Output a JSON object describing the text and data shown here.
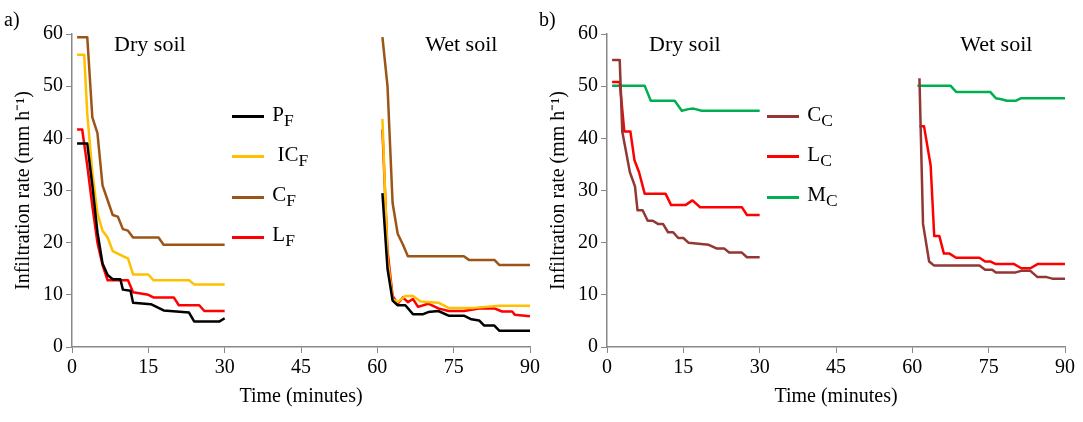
{
  "chart_data": [
    {
      "type": "line",
      "title": "a)",
      "xlabel": "Time (minutes)",
      "ylabel": "Infiltration rate (mm h⁻¹)",
      "xlim": [
        0,
        90
      ],
      "xticks": [
        0,
        15,
        30,
        45,
        60,
        75,
        90
      ],
      "ylim": [
        0,
        60
      ],
      "yticks": [
        0,
        10,
        20,
        30,
        40,
        50,
        60
      ],
      "grid": false,
      "legend": "center",
      "marker": "none",
      "line_style": "solid",
      "annotations": [
        "Dry soil",
        "Wet soil"
      ],
      "series": [
        {
          "name": "P$_{F}$",
          "color": "#000000",
          "x": [
            1,
            3,
            4,
            5,
            6,
            7,
            8,
            9.5,
            10,
            11.5,
            12,
            15.5,
            18,
            23,
            24,
            29,
            30,
            45,
            61,
            62,
            63,
            64,
            65.5,
            67,
            69,
            70,
            72,
            74,
            77,
            78.5,
            80,
            81,
            83,
            84,
            90
          ],
          "values": [
            39,
            39,
            31,
            22,
            16,
            13.8,
            13,
            13,
            11,
            10.8,
            8.5,
            8.2,
            7,
            6.6,
            4.9,
            4.9,
            5.5,
            null,
            29.5,
            15,
            8.9,
            8,
            8,
            6.3,
            6.3,
            6.7,
            6.9,
            6,
            6,
            5.3,
            5.1,
            4.1,
            4.1,
            3.1,
            3.1
          ]
        },
        {
          "name": " IC$_{F}$",
          "color": "#ffc000",
          "x": [
            1,
            2.4,
            3,
            4,
            5,
            6,
            7,
            8,
            10,
            11,
            12,
            15,
            16,
            23,
            24,
            30,
            45,
            61,
            62,
            63,
            64,
            65.5,
            67,
            68.5,
            72,
            74,
            79,
            84,
            90
          ],
          "values": [
            56,
            56,
            44.7,
            33.5,
            25.6,
            22.3,
            21,
            18.4,
            17.4,
            17,
            13.9,
            13.9,
            12.8,
            12.8,
            12,
            12,
            null,
            43.7,
            17,
            9.2,
            8.6,
            9.8,
            9.8,
            8.7,
            8.5,
            7.5,
            7.5,
            7.9,
            7.9
          ]
        },
        {
          "name": "C$_{F}$",
          "color": "#9c5516",
          "x": [
            1,
            3,
            4,
            5,
            6,
            8,
            9,
            10,
            11,
            12,
            17,
            18,
            30,
            45,
            61,
            62,
            63,
            64,
            65,
            66,
            77,
            78,
            83,
            84,
            90
          ],
          "values": [
            59.4,
            59.4,
            44,
            41,
            31,
            25.3,
            25,
            22.6,
            22.3,
            21,
            21,
            19.6,
            19.6,
            null,
            59.4,
            50,
            27.6,
            21.7,
            19.7,
            17.4,
            17.4,
            16.7,
            16.7,
            15.7,
            15.7
          ]
        },
        {
          "name": "L$_{F}$",
          "color": "#ff0000",
          "x": [
            1,
            2,
            3,
            4,
            5,
            6,
            7,
            11,
            12,
            15,
            16,
            20,
            21,
            25,
            26,
            30,
            45,
            61,
            62,
            63,
            64,
            65,
            66,
            67,
            68,
            70,
            72,
            74,
            77,
            80,
            83,
            84.5,
            86.5,
            87,
            90
          ],
          "values": [
            41.7,
            41.7,
            34.8,
            27,
            20,
            15.7,
            12.8,
            12.8,
            10.5,
            10,
            9.5,
            9.5,
            8,
            8,
            6.9,
            6.9,
            null,
            41.7,
            18.4,
            9.8,
            8.3,
            9.5,
            8.6,
            9.2,
            7.7,
            8.3,
            7.4,
            6.9,
            6.9,
            7.4,
            7.4,
            6.8,
            6.8,
            6.2,
            5.9
          ]
        }
      ]
    },
    {
      "type": "line",
      "title": "b)",
      "xlabel": "Time (minutes)",
      "ylabel": "Infiltration rate (mm h⁻¹)",
      "xlim": [
        0,
        90
      ],
      "xticks": [
        0,
        15,
        30,
        45,
        60,
        75,
        90
      ],
      "ylim": [
        0,
        60
      ],
      "yticks": [
        0,
        10,
        20,
        30,
        40,
        50,
        60
      ],
      "grid": false,
      "legend": "center",
      "marker": "none",
      "line_style": "solid",
      "annotations": [
        "Dry soil",
        "Wet soil"
      ],
      "series": [
        {
          "name": "C$_{C}$",
          "color": "#943634",
          "x": [
            1,
            2.5,
            3,
            4.5,
            5.5,
            6,
            7,
            8,
            9,
            10,
            11,
            12,
            13,
            14,
            15,
            16,
            20,
            21.5,
            23,
            24,
            26.5,
            27.5,
            30,
            45,
            61.4,
            62.1,
            63.3,
            64.3,
            73.2,
            74.3,
            75.7,
            76.4,
            80.3,
            81.4,
            83.2,
            84.6,
            86.4,
            87.5,
            90
          ],
          "values": [
            55,
            55,
            41.3,
            33.5,
            30.8,
            26.2,
            26.2,
            24.2,
            24.2,
            23.6,
            23.6,
            22,
            22,
            20.9,
            20.9,
            20,
            19.6,
            18.9,
            18.9,
            18.1,
            18.1,
            17.2,
            17.2,
            null,
            51.5,
            23.6,
            16.4,
            15.6,
            15.6,
            14.8,
            14.8,
            14.3,
            14.3,
            14.6,
            14.6,
            13.4,
            13.4,
            13.1,
            13.1
          ]
        },
        {
          "name": "L$_{C}$",
          "color": "#ff0000",
          "x": [
            1,
            2.5,
            3.4,
            4.6,
            5.4,
            6.3,
            7.4,
            11.5,
            12.6,
            15.4,
            16.8,
            18.3,
            26.5,
            27.5,
            30,
            45,
            61.4,
            62.3,
            63.6,
            64.3,
            65.3,
            66.2,
            67.3,
            68.6,
            73.2,
            74.3,
            75.3,
            76.4,
            80,
            81.4,
            83.2,
            84.6,
            90
          ],
          "values": [
            50.8,
            50.8,
            41.3,
            41.3,
            35.8,
            33.5,
            29.4,
            29.4,
            27.2,
            27.2,
            28.1,
            26.8,
            26.8,
            25.3,
            25.3,
            null,
            42.3,
            42.3,
            34.8,
            21.3,
            21.3,
            17.9,
            17.9,
            17.1,
            17.1,
            16.4,
            16.4,
            15.9,
            15.9,
            15.1,
            15.1,
            15.9,
            15.9
          ]
        },
        {
          "name": "M$_{C}$",
          "color": "#00b050",
          "x": [
            1,
            7.4,
            8.6,
            13.3,
            14.7,
            16,
            17,
            18.6,
            30,
            45,
            61,
            67.5,
            68.6,
            75.3,
            76.4,
            77.5,
            78.6,
            80.3,
            81.4,
            90
          ],
          "values": [
            50.1,
            50.1,
            47.2,
            47.2,
            45.3,
            45.6,
            45.7,
            45.3,
            45.3,
            null,
            50.1,
            50.1,
            48.9,
            48.9,
            47.7,
            47.5,
            47.2,
            47.2,
            47.7,
            47.7
          ]
        }
      ]
    }
  ]
}
